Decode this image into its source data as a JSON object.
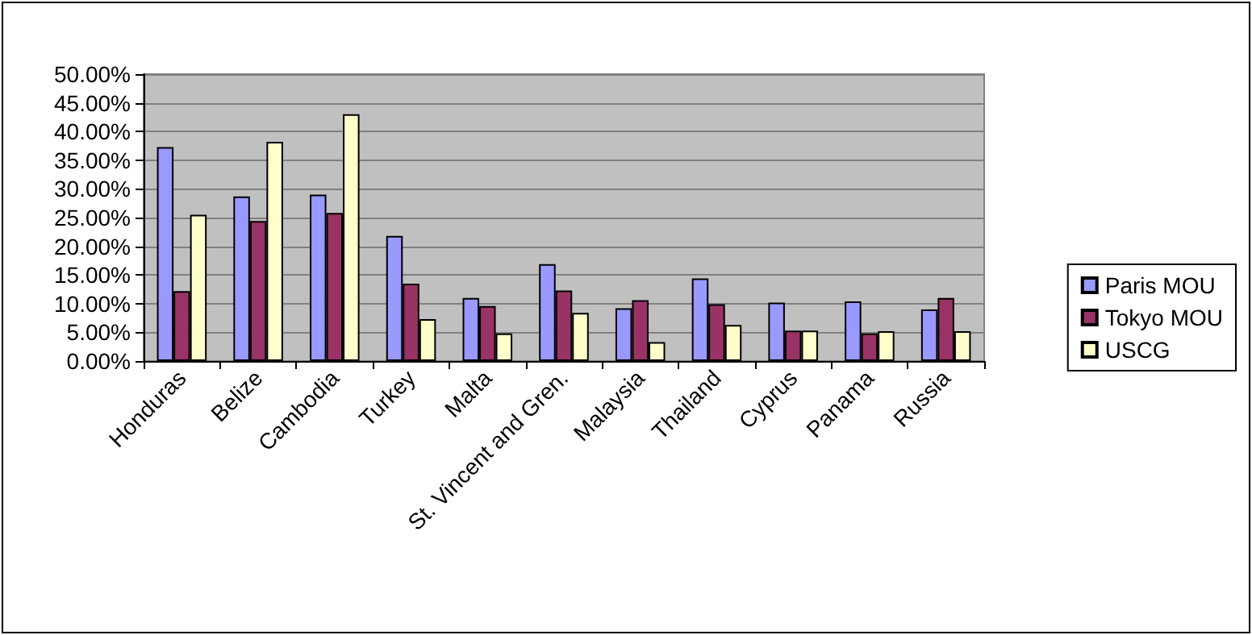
{
  "chart_data": {
    "type": "bar",
    "categories": [
      "Honduras",
      "Belize",
      "Cambodia",
      "Turkey",
      "Malta",
      "St. Vincent and Gren.",
      "Malaysia",
      "Thailand",
      "Cyprus",
      "Panama",
      "Russia"
    ],
    "series": [
      {
        "name": "Paris MOU",
        "color": "#9999ff",
        "values": [
          37.3,
          28.7,
          29.0,
          21.8,
          11.0,
          16.9,
          9.2,
          14.4,
          10.2,
          10.4,
          9.0
        ]
      },
      {
        "name": "Tokyo MOU",
        "color": "#993366",
        "values": [
          12.2,
          24.4,
          25.8,
          13.5,
          9.6,
          12.3,
          10.6,
          9.9,
          5.3,
          4.8,
          11.0
        ]
      },
      {
        "name": "USCG",
        "color": "#ffffcc",
        "values": [
          25.5,
          38.2,
          43.0,
          7.3,
          4.8,
          8.4,
          3.3,
          6.3,
          5.3,
          5.2,
          5.2
        ]
      }
    ],
    "ylim": [
      0,
      50
    ],
    "yticks": [
      {
        "value": 0,
        "label": "0.00%"
      },
      {
        "value": 5,
        "label": "5.00%"
      },
      {
        "value": 10,
        "label": "10.00%"
      },
      {
        "value": 15,
        "label": "15.00%"
      },
      {
        "value": 20,
        "label": "20.00%"
      },
      {
        "value": 25,
        "label": "25.00%"
      },
      {
        "value": 30,
        "label": "30.00%"
      },
      {
        "value": 35,
        "label": "35.00%"
      },
      {
        "value": 40,
        "label": "40.00%"
      },
      {
        "value": 45,
        "label": "45.00%"
      },
      {
        "value": 50,
        "label": "50.00%"
      }
    ],
    "grid": "y",
    "legend": "right"
  }
}
